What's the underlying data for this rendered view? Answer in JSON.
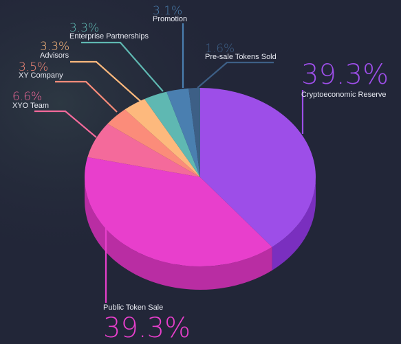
{
  "chart_data": {
    "type": "pie",
    "title": "",
    "slices": [
      {
        "label": "Cryptoeconomic Reserve",
        "value": 39.3,
        "display": "39.3%",
        "color": "#9d4ee8",
        "side": "#7a2fbf"
      },
      {
        "label": "Public Token Sale",
        "value": 39.3,
        "display": "39.3%",
        "color": "#e83fcc",
        "side": "#b92da3"
      },
      {
        "label": "XYO Team",
        "value": 6.6,
        "display": "6.6%",
        "color": "#f46a9b",
        "side": "#c24f78"
      },
      {
        "label": "XY Company",
        "value": 3.5,
        "display": "3.5%",
        "color": "#fb8c7a",
        "side": "#c86a5c"
      },
      {
        "label": "Advisors",
        "value": 3.3,
        "display": "3.3%",
        "color": "#fdb97d",
        "side": "#c98e5e"
      },
      {
        "label": "Enterprise Partnerships",
        "value": 3.3,
        "display": "3.3%",
        "color": "#5fb8b2",
        "side": "#468a86"
      },
      {
        "label": "Promotion",
        "value": 3.1,
        "display": "3.1%",
        "color": "#4a7fb0",
        "side": "#375f85"
      },
      {
        "label": "Pre-sale Tokens Sold",
        "value": 1.6,
        "display": "1.6%",
        "color": "#3d5f86",
        "side": "#2c4563"
      }
    ],
    "legend": "none"
  }
}
